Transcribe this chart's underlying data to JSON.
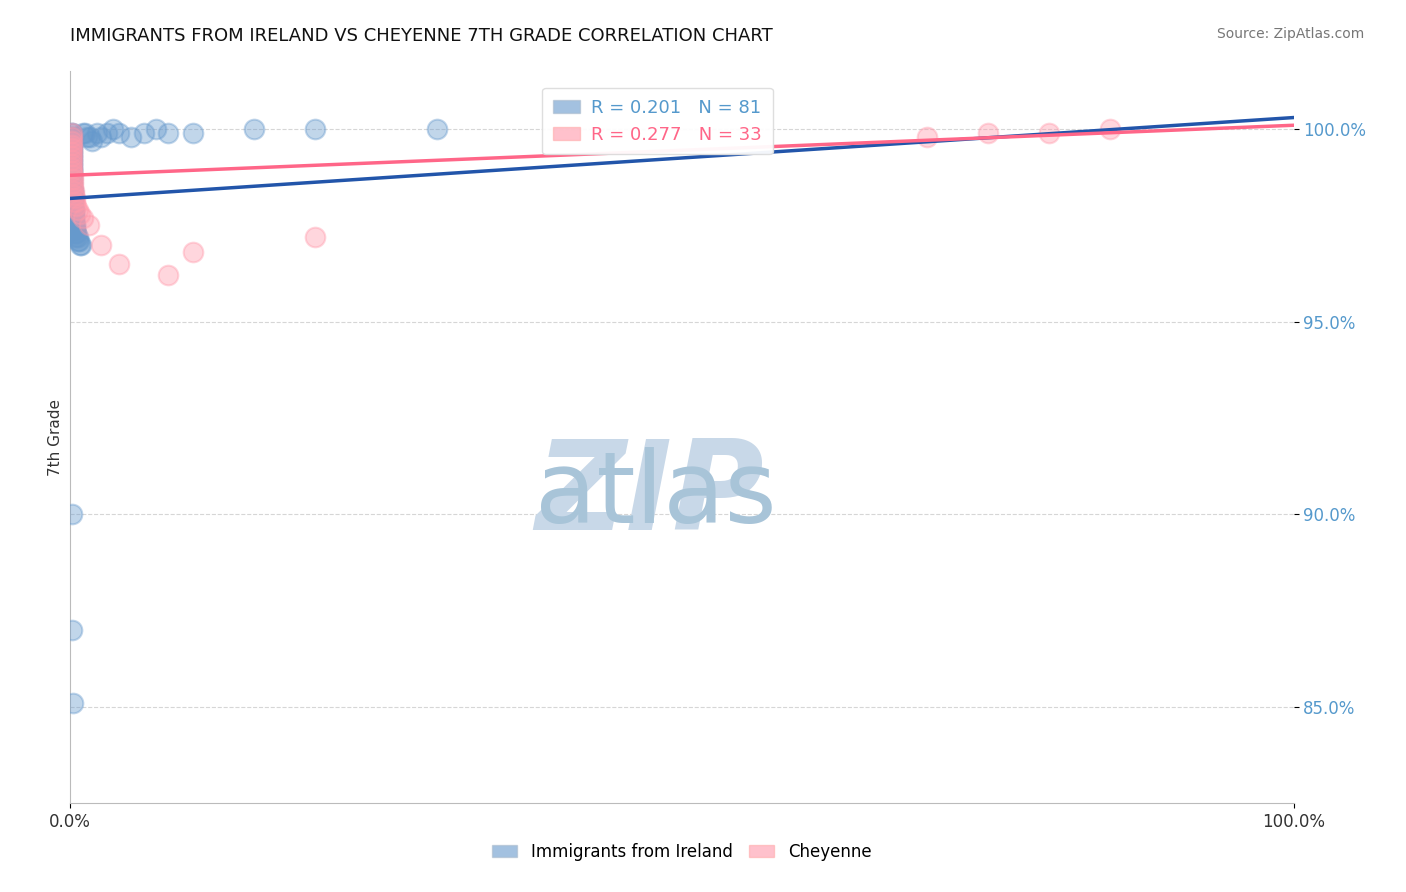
{
  "title": "IMMIGRANTS FROM IRELAND VS CHEYENNE 7TH GRADE CORRELATION CHART",
  "source_text": "Source: ZipAtlas.com",
  "ylabel": "7th Grade",
  "legend_label1": "Immigrants from Ireland",
  "legend_label2": "Cheyenne",
  "R1": 0.201,
  "N1": 81,
  "R2": 0.277,
  "N2": 33,
  "color_blue": "#6699CC",
  "color_pink": "#FF99AA",
  "trend_color_blue": "#2255AA",
  "trend_color_pink": "#FF6688",
  "watermark_zip": "ZIP",
  "watermark_atlas": "atlas",
  "watermark_color_zip": "#C8D8E8",
  "watermark_color_atlas": "#A8C4D8",
  "xlim": [
    0.0,
    1.0
  ],
  "ylim": [
    0.825,
    1.015
  ],
  "yticks": [
    0.85,
    0.9,
    0.95,
    1.0
  ],
  "ytick_labels": [
    "85.0%",
    "90.0%",
    "95.0%",
    "100.0%"
  ],
  "xticks": [
    0.0,
    0.5,
    1.0
  ],
  "xtick_labels": [
    "0.0%",
    "",
    "100.0%"
  ],
  "blue_scatter_x": [
    0.001,
    0.001,
    0.001,
    0.001,
    0.001,
    0.001,
    0.001,
    0.001,
    0.001,
    0.001,
    0.001,
    0.001,
    0.001,
    0.001,
    0.001,
    0.001,
    0.001,
    0.001,
    0.001,
    0.001,
    0.001,
    0.001,
    0.001,
    0.001,
    0.001,
    0.001,
    0.001,
    0.001,
    0.001,
    0.001,
    0.002,
    0.002,
    0.002,
    0.002,
    0.002,
    0.002,
    0.002,
    0.002,
    0.002,
    0.002,
    0.003,
    0.003,
    0.003,
    0.003,
    0.003,
    0.003,
    0.003,
    0.003,
    0.004,
    0.004,
    0.004,
    0.004,
    0.005,
    0.005,
    0.005,
    0.006,
    0.006,
    0.007,
    0.008,
    0.009,
    0.01,
    0.012,
    0.014,
    0.016,
    0.018,
    0.022,
    0.025,
    0.03,
    0.035,
    0.04,
    0.05,
    0.06,
    0.07,
    0.08,
    0.1,
    0.15,
    0.2,
    0.3,
    0.001,
    0.001,
    0.002
  ],
  "blue_scatter_y": [
    0.999,
    0.999,
    0.998,
    0.998,
    0.997,
    0.997,
    0.996,
    0.996,
    0.995,
    0.995,
    0.994,
    0.994,
    0.993,
    0.993,
    0.992,
    0.992,
    0.991,
    0.991,
    0.99,
    0.99,
    0.989,
    0.989,
    0.988,
    0.988,
    0.987,
    0.987,
    0.986,
    0.986,
    0.985,
    0.985,
    0.984,
    0.984,
    0.983,
    0.983,
    0.982,
    0.982,
    0.981,
    0.981,
    0.98,
    0.98,
    0.979,
    0.979,
    0.978,
    0.978,
    0.977,
    0.977,
    0.976,
    0.976,
    0.975,
    0.975,
    0.974,
    0.974,
    0.973,
    0.973,
    0.972,
    0.972,
    0.971,
    0.971,
    0.97,
    0.97,
    0.999,
    0.999,
    0.998,
    0.998,
    0.997,
    0.999,
    0.998,
    0.999,
    1.0,
    0.999,
    0.998,
    0.999,
    1.0,
    0.999,
    0.999,
    1.0,
    1.0,
    1.0,
    0.9,
    0.87,
    0.851
  ],
  "pink_scatter_x": [
    0.001,
    0.001,
    0.001,
    0.001,
    0.001,
    0.001,
    0.001,
    0.001,
    0.001,
    0.001,
    0.001,
    0.002,
    0.002,
    0.002,
    0.002,
    0.003,
    0.003,
    0.004,
    0.004,
    0.005,
    0.006,
    0.008,
    0.01,
    0.015,
    0.025,
    0.04,
    0.08,
    0.1,
    0.2,
    0.7,
    0.75,
    0.8,
    0.85
  ],
  "pink_scatter_y": [
    0.999,
    0.998,
    0.997,
    0.996,
    0.995,
    0.994,
    0.993,
    0.992,
    0.991,
    0.99,
    0.989,
    0.988,
    0.987,
    0.986,
    0.985,
    0.984,
    0.983,
    0.982,
    0.981,
    0.98,
    0.979,
    0.978,
    0.977,
    0.975,
    0.97,
    0.965,
    0.962,
    0.968,
    0.972,
    0.998,
    0.999,
    0.999,
    1.0
  ],
  "blue_trend_x0": 0.0,
  "blue_trend_x1": 1.0,
  "blue_trend_y0": 0.982,
  "blue_trend_y1": 1.003,
  "pink_trend_x0": 0.0,
  "pink_trend_x1": 1.0,
  "pink_trend_y0": 0.988,
  "pink_trend_y1": 1.001
}
